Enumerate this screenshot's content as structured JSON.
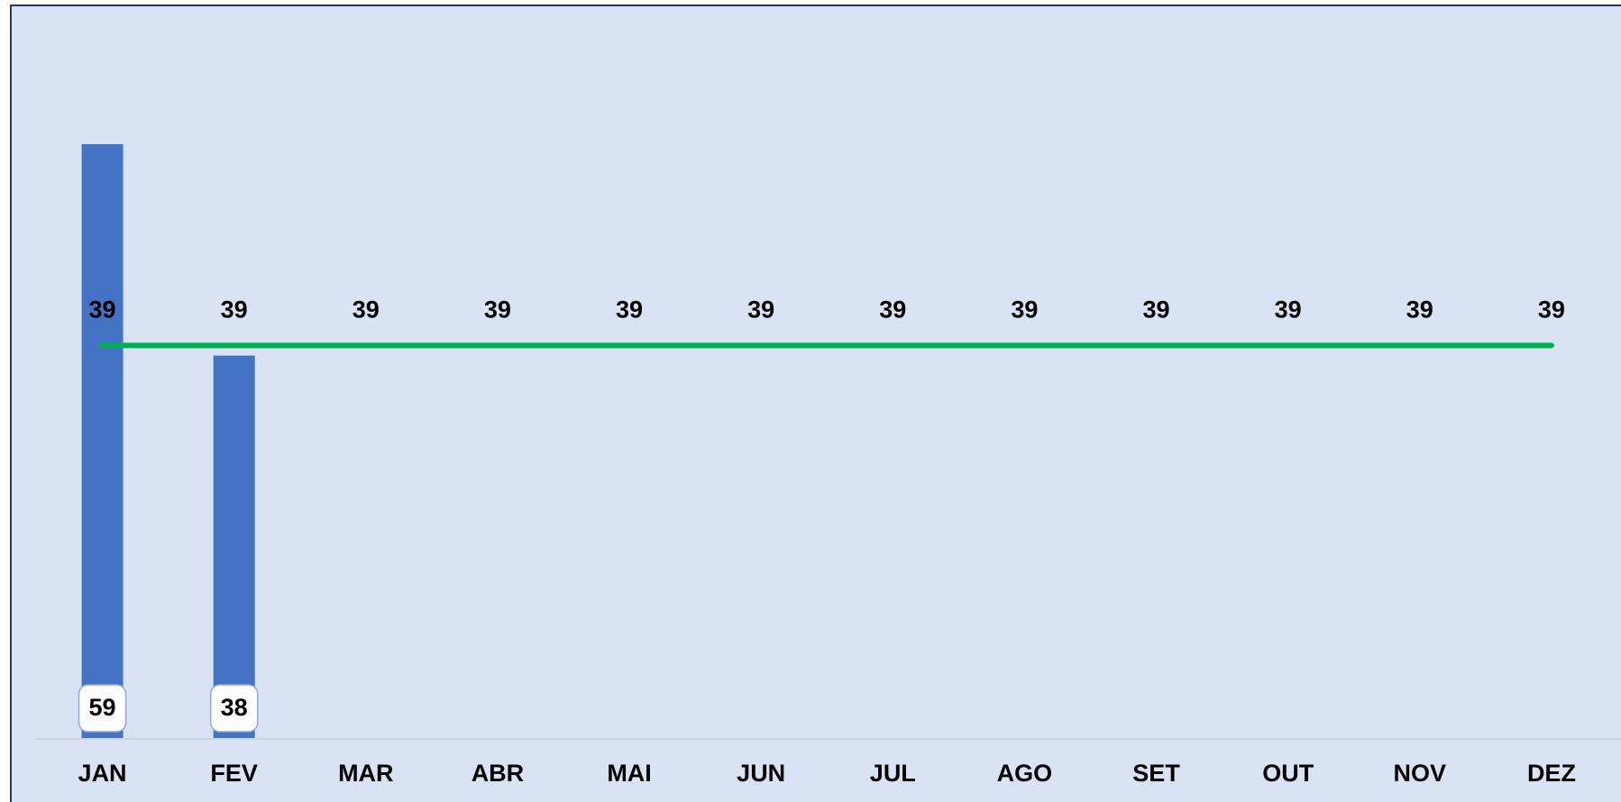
{
  "chart_data": {
    "type": "bar",
    "categories": [
      "JAN",
      "FEV",
      "MAR",
      "ABR",
      "MAI",
      "JUN",
      "JUL",
      "AGO",
      "SET",
      "OUT",
      "NOV",
      "DEZ"
    ],
    "series": [
      {
        "type": "bar",
        "color": "#4472c4",
        "values": [
          59,
          38,
          null,
          null,
          null,
          null,
          null,
          null,
          null,
          null,
          null,
          null
        ]
      },
      {
        "type": "line",
        "color": "#00b050",
        "values": [
          39,
          39,
          39,
          39,
          39,
          39,
          39,
          39,
          39,
          39,
          39,
          39
        ]
      }
    ],
    "ylim": [
      0,
      65
    ],
    "grid": false
  }
}
